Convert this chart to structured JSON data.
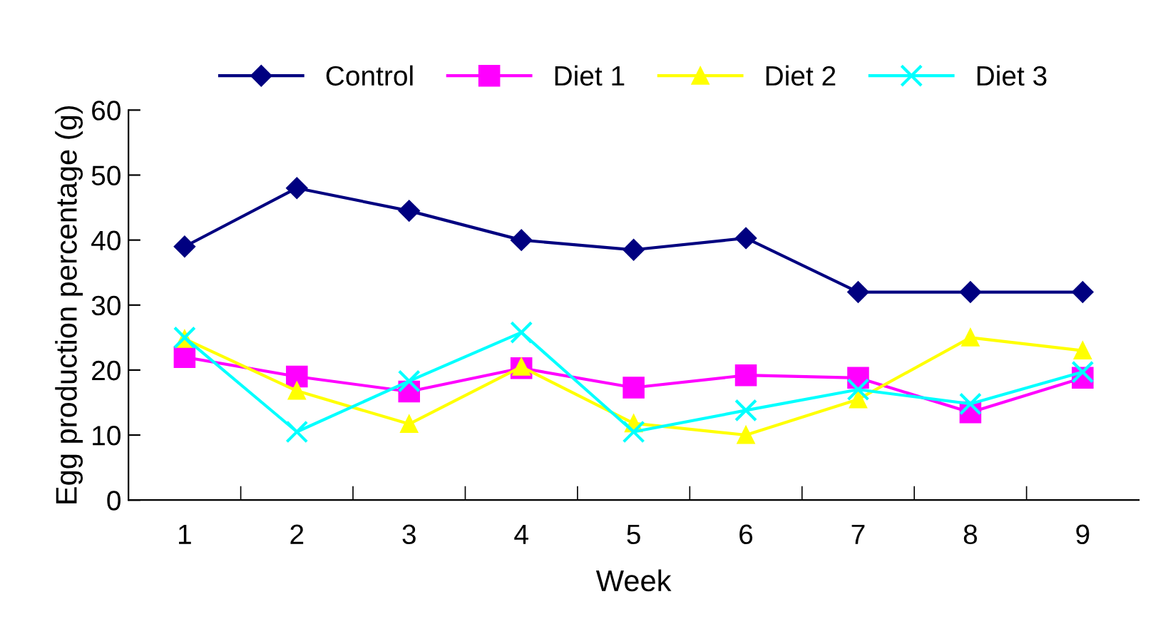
{
  "chart_data": {
    "type": "line",
    "xlabel": "Week",
    "ylabel": "Egg production percentage (g)",
    "categories": [
      "1",
      "2",
      "3",
      "4",
      "5",
      "6",
      "7",
      "8",
      "9"
    ],
    "ylim": [
      0,
      60
    ],
    "yticks": [
      0,
      10,
      20,
      30,
      40,
      50,
      60
    ],
    "grid": false,
    "legend": "top",
    "series": [
      {
        "name": "Control",
        "color": "#000080",
        "marker": "diamond",
        "values": [
          39,
          48,
          44.5,
          40,
          38.5,
          40.3,
          32,
          32,
          32
        ]
      },
      {
        "name": "Diet 1",
        "color": "#ff00ff",
        "marker": "square",
        "values": [
          22,
          19,
          16.7,
          20.3,
          17.3,
          19.2,
          18.8,
          13.5,
          18.8
        ]
      },
      {
        "name": "Diet 2",
        "color": "#ffff00",
        "marker": "triangle",
        "values": [
          24.8,
          16.8,
          11.7,
          20.5,
          11.8,
          10,
          15.5,
          25,
          23
        ]
      },
      {
        "name": "Diet 3",
        "color": "#00ffff",
        "marker": "cross",
        "values": [
          25,
          10.5,
          18.3,
          25.8,
          10.5,
          13.8,
          17,
          14.8,
          19.7
        ]
      }
    ]
  }
}
